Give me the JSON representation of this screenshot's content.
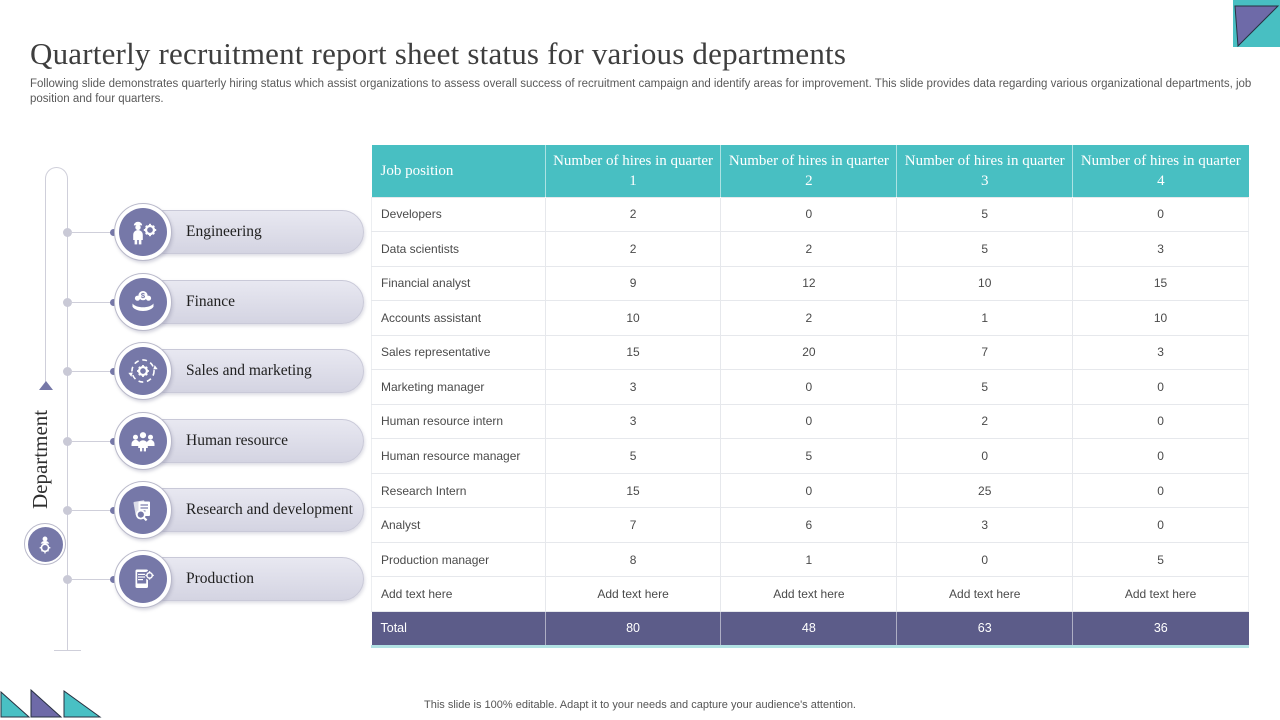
{
  "slide": {
    "title": "Quarterly recruitment report sheet status for various departments",
    "subtitle": "Following slide demonstrates quarterly hiring status which assist organizations to assess overall success of recruitment campaign and identify areas for improvement. This slide provides data regarding various organizational departments, job position and four quarters.",
    "footer": "This slide is 100% editable. Adapt it to your needs and capture your audience's attention."
  },
  "sidebar": {
    "axis_label": "Department",
    "items": [
      {
        "label": "Engineering",
        "icon": "engineer-icon"
      },
      {
        "label": "Finance",
        "icon": "finance-icon"
      },
      {
        "label": "Sales and marketing",
        "icon": "sales-marketing-icon"
      },
      {
        "label": "Human resource",
        "icon": "human-resource-icon"
      },
      {
        "label": "Research and development",
        "icon": "research-icon"
      },
      {
        "label": "Production",
        "icon": "production-icon"
      }
    ]
  },
  "table": {
    "columns": [
      "Job position",
      "Number of hires in quarter 1",
      "Number of hires in quarter 2",
      "Number of hires in quarter 3",
      "Number of hires in quarter 4"
    ],
    "rows": [
      {
        "label": "Developers",
        "values": [
          "2",
          "0",
          "5",
          "0"
        ]
      },
      {
        "label": "Data scientists",
        "values": [
          "2",
          "2",
          "5",
          "3"
        ]
      },
      {
        "label": "Financial analyst",
        "values": [
          "9",
          "12",
          "10",
          "15"
        ]
      },
      {
        "label": "Accounts assistant",
        "values": [
          "10",
          "2",
          "1",
          "10"
        ]
      },
      {
        "label": "Sales representative",
        "values": [
          "15",
          "20",
          "7",
          "3"
        ]
      },
      {
        "label": "Marketing manager",
        "values": [
          "3",
          "0",
          "5",
          "0"
        ]
      },
      {
        "label": "Human resource intern",
        "values": [
          "3",
          "0",
          "2",
          "0"
        ]
      },
      {
        "label": "Human resource manager",
        "values": [
          "5",
          "5",
          "0",
          "0"
        ]
      },
      {
        "label": "Research Intern",
        "values": [
          "15",
          "0",
          "25",
          "0"
        ]
      },
      {
        "label": "Analyst",
        "values": [
          "7",
          "6",
          "3",
          "0"
        ]
      },
      {
        "label": "Production manager",
        "values": [
          "8",
          "1",
          "0",
          "5"
        ]
      },
      {
        "label": "Add text here",
        "values": [
          "Add text here",
          "Add text here",
          "Add text here",
          "Add text here"
        ]
      }
    ],
    "total": {
      "label": "Total",
      "values": [
        "80",
        "48",
        "63",
        "36"
      ]
    }
  },
  "colors": {
    "header_teal": "#48bfc2",
    "total_purple": "#5c5c89",
    "icon_purple": "#7678a8",
    "pill_lavender": "#dcdce8"
  }
}
